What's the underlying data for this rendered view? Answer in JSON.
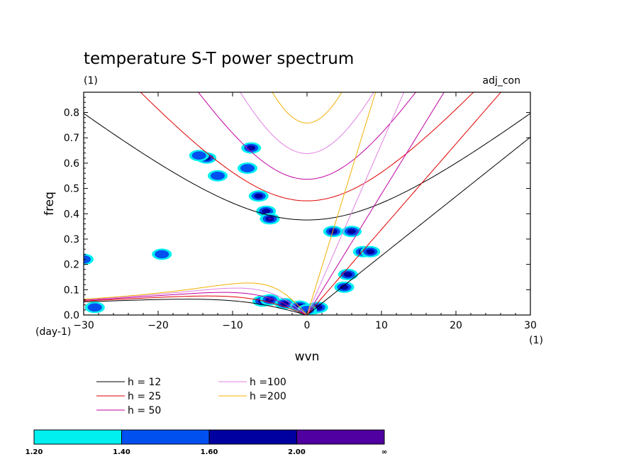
{
  "title": "temperature S-T power spectrum",
  "subtitle": "(1)",
  "tag": "adj_con",
  "xlabel": "wvn",
  "ylabel": "freq",
  "x_unit": "(1)",
  "y_unit": "(day-1)",
  "chart_data": {
    "type": "contour",
    "xlim": [
      -30,
      30
    ],
    "ylim": [
      0,
      0.88
    ],
    "x_ticks": [
      -30,
      -20,
      -10,
      0,
      10,
      20,
      30
    ],
    "x_tick_labels": [
      "−30",
      "−20",
      "−10",
      "0",
      "10",
      "20",
      "30"
    ],
    "y_ticks": [
      0,
      0.1,
      0.2,
      0.3,
      0.4,
      0.5,
      0.6,
      0.7,
      0.8
    ],
    "y_tick_labels": [
      "0.0",
      "0.1",
      "0.2",
      "0.3",
      "0.4",
      "0.5",
      "0.6",
      "0.7",
      "0.8"
    ],
    "dispersion_curves": [
      {
        "label": "h = 12",
        "h": 12,
        "color": "#000000"
      },
      {
        "label": "h = 25",
        "h": 25,
        "color": "#e00000"
      },
      {
        "label": "h = 50",
        "h": 50,
        "color": "#c000a0"
      },
      {
        "label": "h =100",
        "h": 100,
        "color": "#e080e0"
      },
      {
        "label": "h =200",
        "h": 200,
        "color": "#f0b000"
      }
    ],
    "colorbar": {
      "levels": [
        "1.20",
        "1.40",
        "1.60",
        "2.00",
        "∞"
      ],
      "colors": [
        "#00f0f0",
        "#0050f0",
        "#0000a0",
        "#5000a0"
      ]
    },
    "blobs": [
      {
        "x": -5.5,
        "y": 0.41,
        "level": 2
      },
      {
        "x": -5.0,
        "y": 0.38,
        "level": 3
      },
      {
        "x": -6.5,
        "y": 0.47,
        "level": 2
      },
      {
        "x": -7.5,
        "y": 0.66,
        "level": 2
      },
      {
        "x": -13.5,
        "y": 0.62,
        "level": 2
      },
      {
        "x": -14.5,
        "y": 0.63,
        "level": 1
      },
      {
        "x": -8.0,
        "y": 0.58,
        "level": 1
      },
      {
        "x": -12.0,
        "y": 0.55,
        "level": 1
      },
      {
        "x": -19.5,
        "y": 0.24,
        "level": 1
      },
      {
        "x": -30.0,
        "y": 0.22,
        "level": 1
      },
      {
        "x": -28.5,
        "y": 0.03,
        "level": 1
      },
      {
        "x": -6.0,
        "y": 0.055,
        "level": 2
      },
      {
        "x": -5.0,
        "y": 0.06,
        "level": 3
      },
      {
        "x": -3.0,
        "y": 0.045,
        "level": 2
      },
      {
        "x": -1.0,
        "y": 0.035,
        "level": 3
      },
      {
        "x": 0.8,
        "y": 0.025,
        "level": 3
      },
      {
        "x": 1.5,
        "y": 0.03,
        "level": 2
      },
      {
        "x": 3.5,
        "y": 0.33,
        "level": 2
      },
      {
        "x": 6.0,
        "y": 0.33,
        "level": 2
      },
      {
        "x": 5.0,
        "y": 0.11,
        "level": 2
      },
      {
        "x": 7.5,
        "y": 0.25,
        "level": 2
      },
      {
        "x": 8.5,
        "y": 0.25,
        "level": 2
      },
      {
        "x": 5.5,
        "y": 0.16,
        "level": 2
      },
      {
        "x": 0.0,
        "y": 0.02,
        "level": 1
      }
    ]
  },
  "legend": [
    "h = 12",
    "h = 25",
    "h = 50",
    "h =100",
    "h =200"
  ]
}
